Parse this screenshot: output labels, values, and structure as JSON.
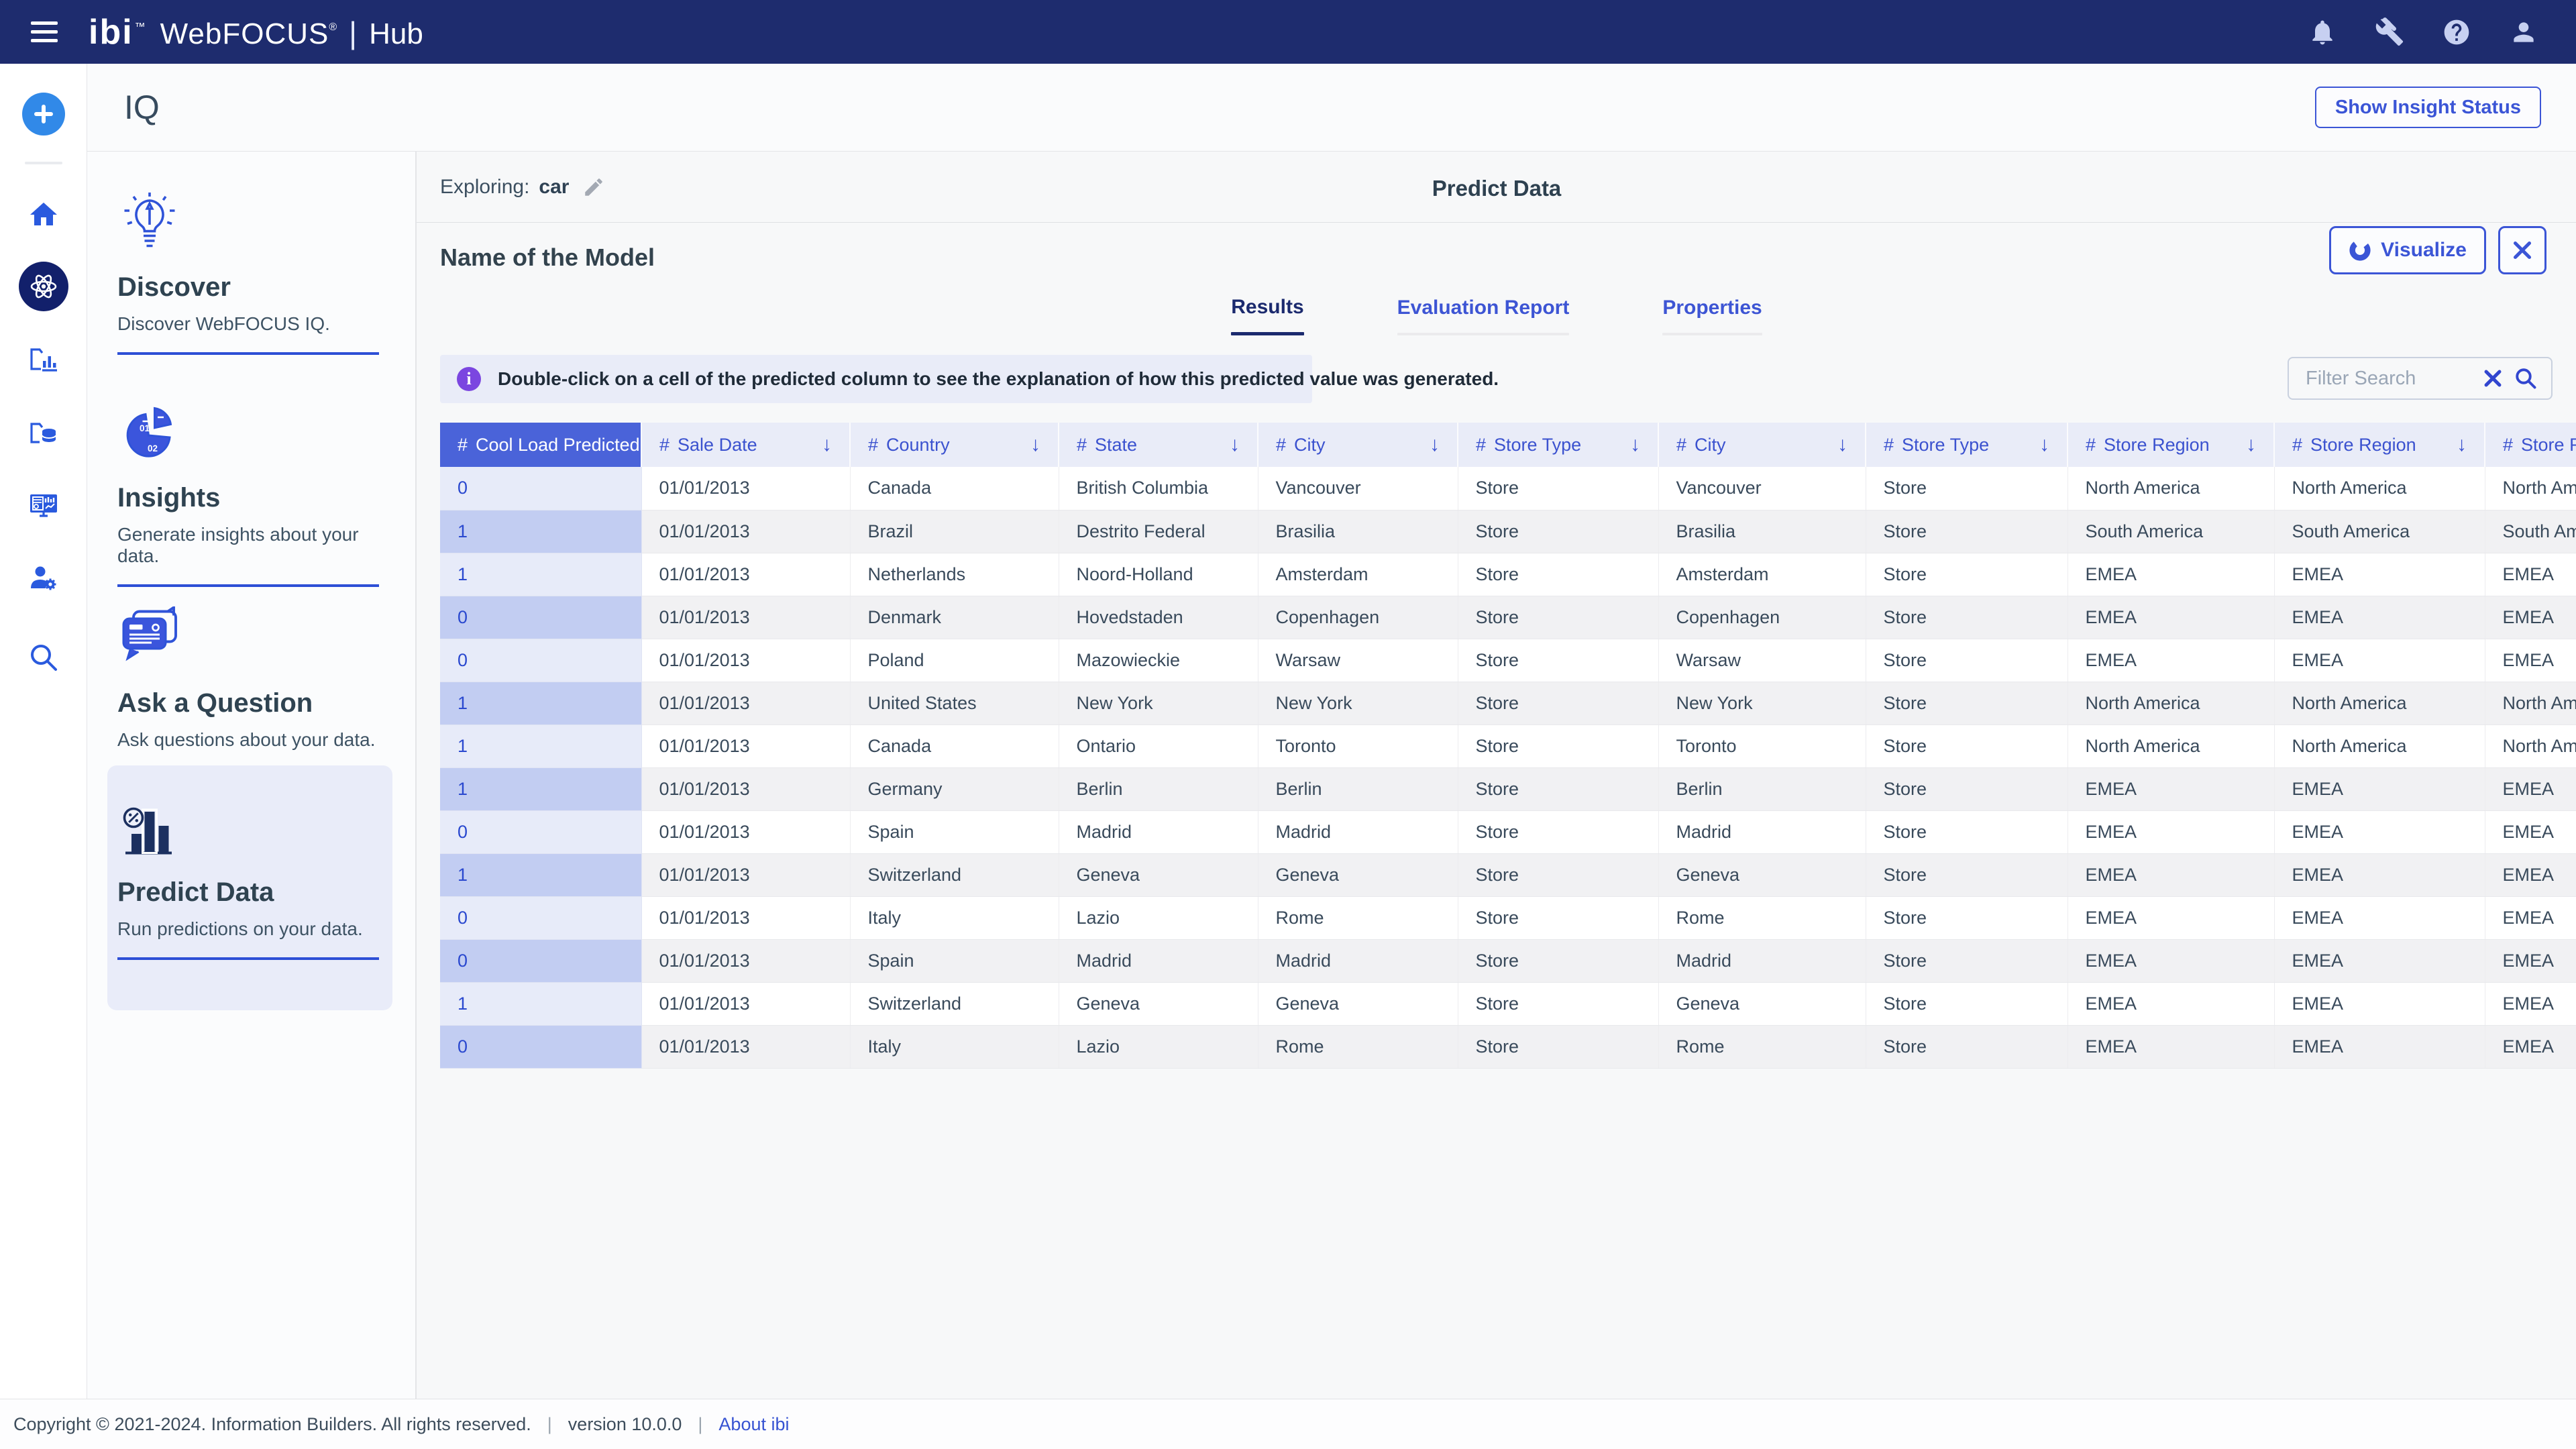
{
  "navbar": {
    "logo": {
      "brand": "ibi",
      "brand_tm": "™",
      "product": "WebFOCUS",
      "product_reg": "®",
      "separator": "|",
      "suite": "Hub"
    }
  },
  "page_header": {
    "title": "IQ",
    "show_insight_status_label": "Show Insight Status"
  },
  "sidebar_cards": [
    {
      "title": "Discover",
      "description": "Discover WebFOCUS IQ."
    },
    {
      "title": "Insights",
      "description": "Generate insights about your data."
    },
    {
      "title": "Ask a Question",
      "description": "Ask questions about your data."
    },
    {
      "title": "Predict Data",
      "description": "Run predictions on your data."
    }
  ],
  "main": {
    "exploring_label": "Exploring:",
    "exploring_value": "car",
    "center_title": "Predict Data",
    "model_name": "Name of the Model",
    "visualize_label": "Visualize",
    "tabs": [
      {
        "label": "Results"
      },
      {
        "label": "Evaluation Report"
      },
      {
        "label": "Properties"
      }
    ],
    "active_tab": "Results",
    "info_banner": "Double-click on a cell of the predicted column to see the explanation of how this predicted value was generated.",
    "filter_placeholder": "Filter Search",
    "table": {
      "header_prefix": "#",
      "sort_arrow": "↓",
      "sorted_column": 0,
      "columns": [
        "Cool Load Predicted",
        "Sale Date",
        "Country",
        "State",
        "City",
        "Store Type",
        "City",
        "Store Type",
        "Store Region",
        "Store Region",
        "Store Region"
      ],
      "rows": [
        [
          "0",
          "01/01/2013",
          "Canada",
          "British Columbia",
          "Vancouver",
          "Store",
          "Vancouver",
          "Store",
          "North America",
          "North America",
          "North America"
        ],
        [
          "1",
          "01/01/2013",
          "Brazil",
          "Destrito Federal",
          "Brasilia",
          "Store",
          "Brasilia",
          "Store",
          "South America",
          "South America",
          "South America"
        ],
        [
          "1",
          "01/01/2013",
          "Netherlands",
          "Noord-Holland",
          "Amsterdam",
          "Store",
          "Amsterdam",
          "Store",
          "EMEA",
          "EMEA",
          "EMEA"
        ],
        [
          "0",
          "01/01/2013",
          "Denmark",
          "Hovedstaden",
          "Copenhagen",
          "Store",
          "Copenhagen",
          "Store",
          "EMEA",
          "EMEA",
          "EMEA"
        ],
        [
          "0",
          "01/01/2013",
          "Poland",
          "Mazowieckie",
          "Warsaw",
          "Store",
          "Warsaw",
          "Store",
          "EMEA",
          "EMEA",
          "EMEA"
        ],
        [
          "1",
          "01/01/2013",
          "United States",
          "New York",
          "New York",
          "Store",
          "New York",
          "Store",
          "North America",
          "North America",
          "North America"
        ],
        [
          "1",
          "01/01/2013",
          "Canada",
          "Ontario",
          "Toronto",
          "Store",
          "Toronto",
          "Store",
          "North America",
          "North America",
          "North America"
        ],
        [
          "1",
          "01/01/2013",
          "Germany",
          "Berlin",
          "Berlin",
          "Store",
          "Berlin",
          "Store",
          "EMEA",
          "EMEA",
          "EMEA"
        ],
        [
          "0",
          "01/01/2013",
          "Spain",
          "Madrid",
          "Madrid",
          "Store",
          "Madrid",
          "Store",
          "EMEA",
          "EMEA",
          "EMEA"
        ],
        [
          "1",
          "01/01/2013",
          "Switzerland",
          "Geneva",
          "Geneva",
          "Store",
          "Geneva",
          "Store",
          "EMEA",
          "EMEA",
          "EMEA"
        ],
        [
          "0",
          "01/01/2013",
          "Italy",
          "Lazio",
          "Rome",
          "Store",
          "Rome",
          "Store",
          "EMEA",
          "EMEA",
          "EMEA"
        ],
        [
          "0",
          "01/01/2013",
          "Spain",
          "Madrid",
          "Madrid",
          "Store",
          "Madrid",
          "Store",
          "EMEA",
          "EMEA",
          "EMEA"
        ],
        [
          "1",
          "01/01/2013",
          "Switzerland",
          "Geneva",
          "Geneva",
          "Store",
          "Geneva",
          "Store",
          "EMEA",
          "EMEA",
          "EMEA"
        ],
        [
          "0",
          "01/01/2013",
          "Italy",
          "Lazio",
          "Rome",
          "Store",
          "Rome",
          "Store",
          "EMEA",
          "EMEA",
          "EMEA"
        ]
      ]
    }
  },
  "footer": {
    "copyright": "Copyright © 2021-2024. Information Builders. All rights reserved.",
    "separator": "|",
    "version": "version 10.0.0",
    "about_link": "About ibi"
  },
  "colors": {
    "navbar": "#1e2c6e",
    "accent_blue": "#3b55d6",
    "sorted_header_bg": "#4a63d9",
    "lavender": "#e9ecf8",
    "predicted_light": "#e7ebf9",
    "predicted_dark": "#c2cdf2",
    "row_alt": "#f1f1f3",
    "info_purple": "#7b46e0",
    "active_tab": "#1b2a6e",
    "plus_button": "#3189e8"
  }
}
